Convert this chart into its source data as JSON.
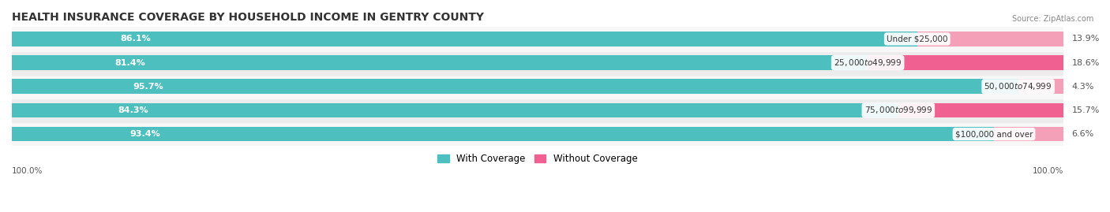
{
  "title": "HEALTH INSURANCE COVERAGE BY HOUSEHOLD INCOME IN GENTRY COUNTY",
  "source": "Source: ZipAtlas.com",
  "categories": [
    "Under $25,000",
    "$25,000 to $49,999",
    "$50,000 to $74,999",
    "$75,000 to $99,999",
    "$100,000 and over"
  ],
  "with_coverage": [
    86.1,
    81.4,
    95.7,
    84.3,
    93.4
  ],
  "without_coverage": [
    13.9,
    18.6,
    4.3,
    15.7,
    6.6
  ],
  "coverage_color": "#4DBFBF",
  "no_coverage_color_dark": "#F06090",
  "no_coverage_color_light": "#F4A0B8",
  "row_bg_even": "#f7f7f7",
  "row_bg_odd": "#ececec",
  "title_fontsize": 10,
  "label_fontsize": 8,
  "cat_fontsize": 7.5,
  "legend_fontsize": 8.5,
  "axis_label_fontsize": 7.5,
  "figsize": [
    14.06,
    2.69
  ],
  "dpi": 100,
  "bar_height": 0.62,
  "y_left_label": "100.0%",
  "y_right_label": "100.0%",
  "total_width": 100
}
